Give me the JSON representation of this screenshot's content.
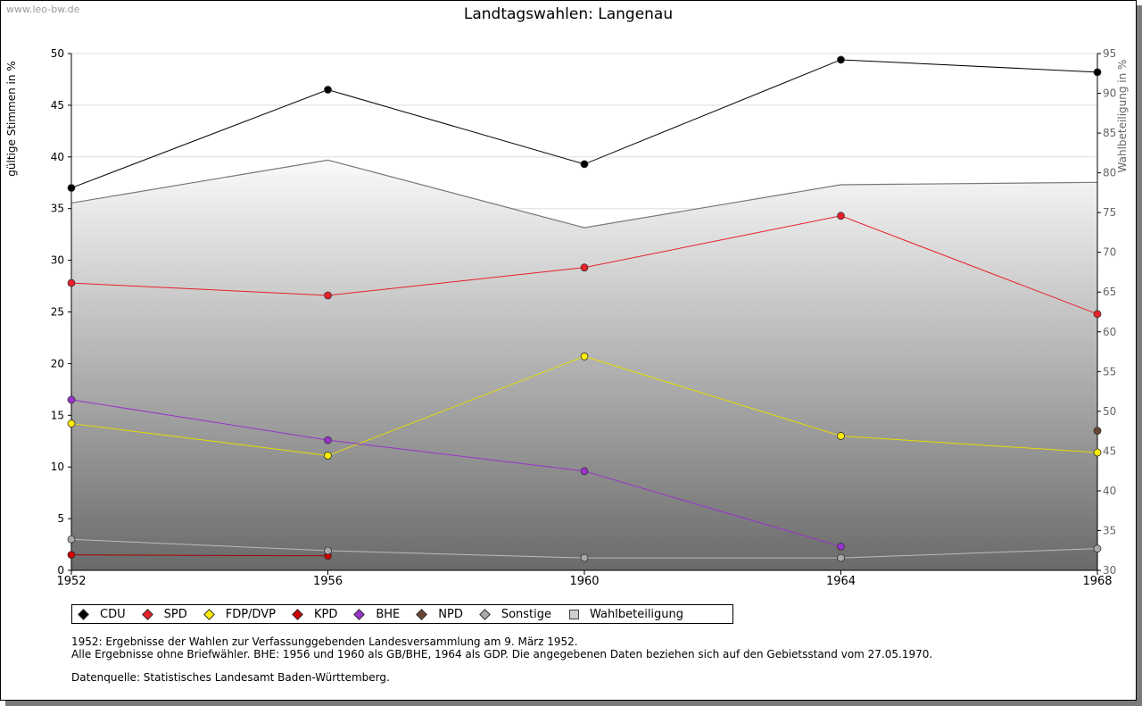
{
  "watermark": "www.leo-bw.de",
  "notes": {
    "line1": "1952: Ergebnisse der Wahlen zur Verfassunggebenden Landesversammlung am 9. März 1952.",
    "line2": "Alle Ergebnisse ohne Briefwähler. BHE: 1956 und 1960 als GB/BHE, 1964 als GDP. Die angegebenen Daten beziehen sich auf den Gebietsstand vom 27.05.1970.",
    "source": "Datenquelle: Statistisches Landesamt Baden-Württemberg."
  },
  "chart_data": {
    "type": "line",
    "title": "Landtagswahlen: Langenau",
    "ylabel": "gültige Stimmen in %",
    "y2label": "Wahlbeteiligung in %",
    "x": [
      1952,
      1956,
      1960,
      1964,
      1968
    ],
    "xticks": [
      "1952",
      "1956",
      "1960",
      "1964",
      "1968"
    ],
    "ylim": [
      0,
      50
    ],
    "yticks": [
      "0",
      "5",
      "10",
      "15",
      "20",
      "25",
      "30",
      "35",
      "40",
      "45",
      "50"
    ],
    "y2lim": [
      30,
      95
    ],
    "y2ticks": [
      "30",
      "35",
      "40",
      "45",
      "50",
      "55",
      "60",
      "65",
      "70",
      "75",
      "80",
      "85",
      "90",
      "95"
    ],
    "grid": true,
    "legend_position": "bottom",
    "series": [
      {
        "name": "CDU",
        "color": "#000000",
        "line": "#000000",
        "values": [
          37.0,
          46.5,
          39.3,
          49.4,
          48.2
        ]
      },
      {
        "name": "SPD",
        "color": "#e8202a",
        "line": "#e8202a",
        "values": [
          27.8,
          26.6,
          29.3,
          34.3,
          24.8
        ]
      },
      {
        "name": "FDP/DVP",
        "color": "#ffee00",
        "line": "#e6dc00",
        "values": [
          14.2,
          11.1,
          20.7,
          13.0,
          11.4
        ]
      },
      {
        "name": "KPD",
        "color": "#cc0000",
        "line": "#aa0000",
        "values": [
          1.5,
          1.4,
          null,
          null,
          null
        ]
      },
      {
        "name": "BHE",
        "color": "#9933cc",
        "line": "#9933cc",
        "values": [
          16.5,
          12.6,
          9.6,
          2.3,
          null
        ]
      },
      {
        "name": "NPD",
        "color": "#664433",
        "line": "#664433",
        "values": [
          null,
          null,
          null,
          null,
          13.5
        ]
      },
      {
        "name": "Sonstige",
        "color": "#aaaaaa",
        "line": "#bbbbbb",
        "values": [
          3.0,
          1.9,
          1.2,
          1.2,
          2.1
        ]
      }
    ],
    "turnout": {
      "name": "Wahlbeteiligung",
      "axis": "right",
      "values": [
        76.2,
        81.6,
        73.1,
        78.5,
        78.8
      ]
    }
  }
}
